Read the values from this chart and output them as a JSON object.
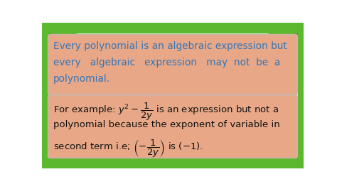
{
  "bg_color": "#ffffff",
  "green_color": "#5cb82e",
  "green_dark": "#3d9018",
  "green_light": "#7fd44a",
  "box_bg": "#e8a888",
  "box_border": "#c8a090",
  "text_color_blue": "#3575b5",
  "text_color_black": "#111111",
  "line1": "Every polynomial is an algebraic expression but",
  "line2": "every   algebraic   expression   may  not  be  a",
  "line3": "polynomial.",
  "b2line2": "polynomial because the exponent of variable in",
  "b2line3": "second term i.e;",
  "figsize": [
    4.74,
    2.66
  ],
  "dpi": 100
}
